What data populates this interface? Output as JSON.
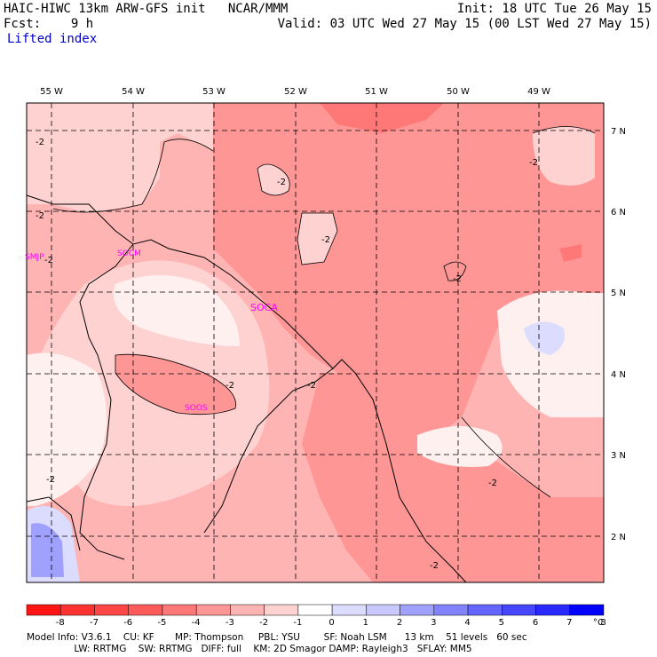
{
  "header": {
    "title_left": "HAIC-HIWC 13km ARW-GFS init   NCAR/MMM",
    "fcst_line": "Fcst:    9 h",
    "field_name": "Lifted index",
    "init_line": "Init: 18 UTC Tue 26 May 15",
    "valid_line": "Valid: 03 UTC Wed 27 May 15 (00 LST Wed 27 May 15)"
  },
  "map": {
    "lon_labels": [
      "55 W",
      "54 W",
      "53 W",
      "52 W",
      "51 W",
      "50 W",
      "49 W"
    ],
    "lat_labels": [
      "7 N",
      "6 N",
      "5 N",
      "4 N",
      "3 N",
      "2 N"
    ],
    "stations": [
      "SMJP",
      "SOCM",
      "SOCA",
      "SOOS"
    ],
    "contour_label": "-2"
  },
  "colorbar": {
    "ticks": [
      "-8",
      "-7",
      "-6",
      "-5",
      "-4",
      "-3",
      "-2",
      "-1",
      "0",
      "1",
      "2",
      "3",
      "4",
      "5",
      "6",
      "7",
      "8"
    ],
    "unit": "°C",
    "colors": [
      "#ff1414",
      "#ff3232",
      "#ff4646",
      "#ff5a5a",
      "#ff7878",
      "#ff9696",
      "#ffb4b4",
      "#ffd2d2",
      "#ffffff",
      "#dcdcff",
      "#c8c8ff",
      "#a0a0ff",
      "#8282ff",
      "#6464ff",
      "#4646ff",
      "#2828ff",
      "#0000ff"
    ]
  },
  "footer": {
    "line1": "Model Info: V3.6.1    CU: KF       MP: Thompson     PBL: YSU        SF: Noah LSM      13 km    51 levels   60 sec",
    "line2": "                LW: RRTMG    SW: RRTMG   DIFF: full    KM: 2D Smagor DAMP: Rayleigh3   SFLAY: MM5"
  }
}
